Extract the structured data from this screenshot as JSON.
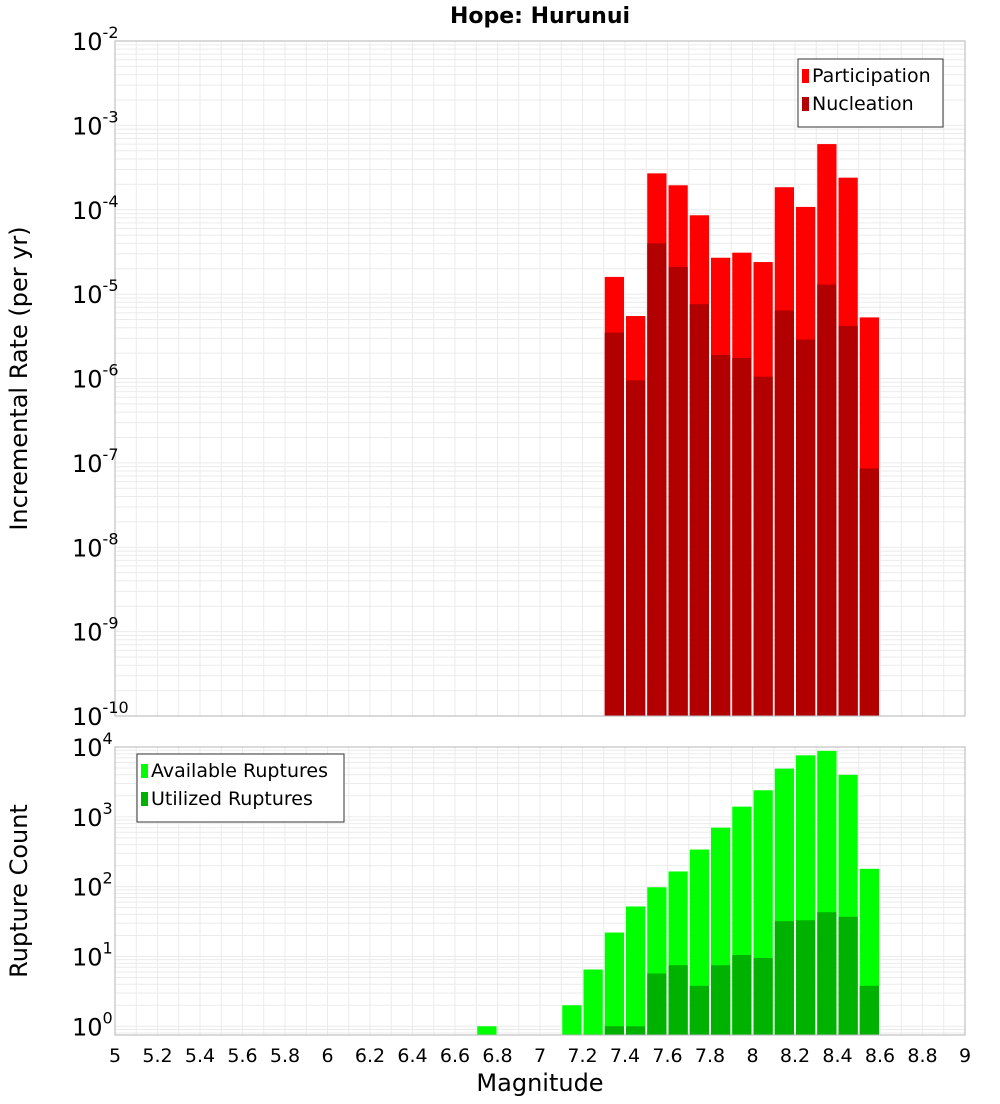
{
  "chart_data": [
    {
      "type": "bar",
      "title": "Hope: Hurunui",
      "xlabel": "",
      "ylabel": "Incremental Rate (per yr)",
      "yscale": "log",
      "ylim": [
        1e-10,
        0.01
      ],
      "xlim": [
        5,
        9
      ],
      "bar_width": 0.1,
      "grid": true,
      "legend_position": "top-right",
      "series": [
        {
          "name": "Participation",
          "color": "#ff0000",
          "points": [
            [
              7.35,
              1.6e-05
            ],
            [
              7.45,
              5.5e-06
            ],
            [
              7.55,
              0.00027
            ],
            [
              7.65,
              0.000195
            ],
            [
              7.75,
              8.6e-05
            ],
            [
              7.85,
              2.7e-05
            ],
            [
              7.95,
              3.1e-05
            ],
            [
              8.05,
              2.4e-05
            ],
            [
              8.15,
              0.000185
            ],
            [
              8.25,
              0.000108
            ],
            [
              8.35,
              0.0006
            ],
            [
              8.45,
              0.00024
            ],
            [
              8.55,
              5.3e-06
            ]
          ]
        },
        {
          "name": "Nucleation",
          "color": "#b20000",
          "points": [
            [
              7.35,
              3.5e-06
            ],
            [
              7.45,
              9.5e-07
            ],
            [
              7.55,
              4e-05
            ],
            [
              7.65,
              2.1e-05
            ],
            [
              7.75,
              7.6e-06
            ],
            [
              7.85,
              1.9e-06
            ],
            [
              7.95,
              1.75e-06
            ],
            [
              8.05,
              1.05e-06
            ],
            [
              8.15,
              6.4e-06
            ],
            [
              8.25,
              2.9e-06
            ],
            [
              8.35,
              1.3e-05
            ],
            [
              8.45,
              4.2e-06
            ],
            [
              8.55,
              8.6e-08
            ]
          ]
        }
      ],
      "y_ticks": [
        {
          "base": "10",
          "exp": "-2"
        },
        {
          "base": "10",
          "exp": "-3"
        },
        {
          "base": "10",
          "exp": "-4"
        },
        {
          "base": "10",
          "exp": "-5"
        },
        {
          "base": "10",
          "exp": "-6"
        },
        {
          "base": "10",
          "exp": "-7"
        },
        {
          "base": "10",
          "exp": "-8"
        },
        {
          "base": "10",
          "exp": "-9"
        },
        {
          "base": "10",
          "exp": "-10"
        }
      ]
    },
    {
      "type": "bar",
      "title": "",
      "xlabel": "Magnitude",
      "ylabel": "Rupture Count",
      "yscale": "log",
      "ylim": [
        0.75,
        10000
      ],
      "xlim": [
        5,
        9
      ],
      "bar_width": 0.1,
      "grid": true,
      "legend_position": "top-left",
      "series": [
        {
          "name": "Available Ruptures",
          "color": "#00ff00",
          "points": [
            [
              6.75,
              1
            ],
            [
              7.15,
              2
            ],
            [
              7.25,
              6.5
            ],
            [
              7.35,
              22
            ],
            [
              7.45,
              52
            ],
            [
              7.55,
              98
            ],
            [
              7.65,
              165
            ],
            [
              7.75,
              340
            ],
            [
              7.85,
              700
            ],
            [
              7.95,
              1400
            ],
            [
              8.05,
              2400
            ],
            [
              8.15,
              4900
            ],
            [
              8.25,
              7600
            ],
            [
              8.35,
              8800
            ],
            [
              8.45,
              4000
            ],
            [
              8.55,
              180
            ]
          ]
        },
        {
          "name": "Utilized Ruptures",
          "color": "#00b200",
          "points": [
            [
              7.35,
              1
            ],
            [
              7.45,
              1
            ],
            [
              7.55,
              5.7
            ],
            [
              7.65,
              7.5
            ],
            [
              7.75,
              3.8
            ],
            [
              7.85,
              7.5
            ],
            [
              7.95,
              10.5
            ],
            [
              8.05,
              9.5
            ],
            [
              8.15,
              32
            ],
            [
              8.25,
              33
            ],
            [
              8.35,
              43
            ],
            [
              8.45,
              37
            ],
            [
              8.55,
              3.8
            ]
          ]
        }
      ],
      "y_ticks": [
        {
          "base": "10",
          "exp": "4"
        },
        {
          "base": "10",
          "exp": "3"
        },
        {
          "base": "10",
          "exp": "2"
        },
        {
          "base": "10",
          "exp": "1"
        },
        {
          "base": "10",
          "exp": "0"
        }
      ],
      "x_ticks": [
        "5",
        "5.2",
        "5.4",
        "5.6",
        "5.8",
        "6",
        "6.2",
        "6.4",
        "6.6",
        "6.8",
        "7",
        "7.2",
        "7.4",
        "7.6",
        "7.8",
        "8",
        "8.2",
        "8.4",
        "8.6",
        "8.8",
        "9"
      ]
    }
  ]
}
